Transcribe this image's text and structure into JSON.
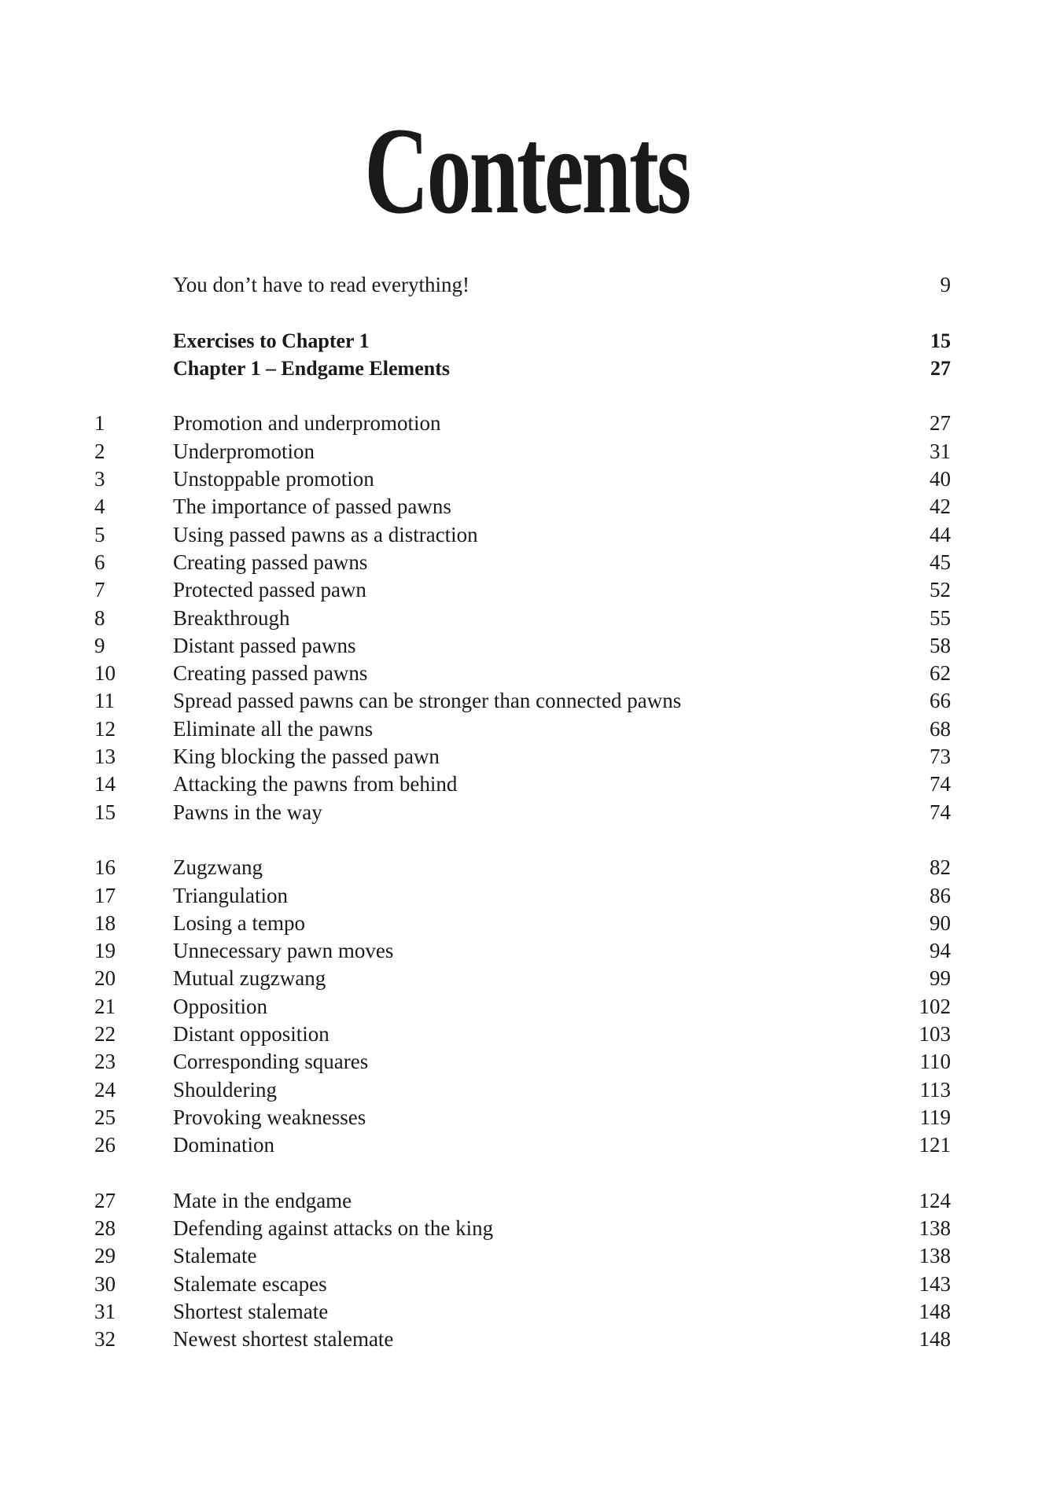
{
  "title": "Contents",
  "intro": [
    {
      "title": "You don’t have to read everything!",
      "page": "9"
    }
  ],
  "headings": [
    {
      "title": "Exercises to Chapter 1",
      "page": "15"
    },
    {
      "title": "Chapter 1 – Endgame Elements",
      "page": "27"
    }
  ],
  "groups": [
    [
      {
        "num": "1",
        "title": "Promotion and underpromotion",
        "page": "27"
      },
      {
        "num": "2",
        "title": "Underpromotion",
        "page": "31"
      },
      {
        "num": "3",
        "title": "Unstoppable promotion",
        "page": "40"
      },
      {
        "num": "4",
        "title": "The importance of passed pawns",
        "page": "42"
      },
      {
        "num": "5",
        "title": "Using passed pawns as a distraction",
        "page": "44"
      },
      {
        "num": "6",
        "title": "Creating passed pawns",
        "page": "45"
      },
      {
        "num": "7",
        "title": "Protected passed pawn",
        "page": "52"
      },
      {
        "num": "8",
        "title": "Breakthrough",
        "page": "55"
      },
      {
        "num": "9",
        "title": "Distant passed pawns",
        "page": "58"
      },
      {
        "num": "10",
        "title": "Creating passed pawns",
        "page": "62"
      },
      {
        "num": "11",
        "title": "Spread passed pawns can be stronger than connected pawns",
        "page": "66"
      },
      {
        "num": "12",
        "title": "Eliminate all the pawns",
        "page": "68"
      },
      {
        "num": "13",
        "title": "King blocking the passed pawn",
        "page": "73"
      },
      {
        "num": "14",
        "title": "Attacking the pawns from behind",
        "page": "74"
      },
      {
        "num": "15",
        "title": "Pawns in the way",
        "page": "74"
      }
    ],
    [
      {
        "num": "16",
        "title": "Zugzwang",
        "page": "82"
      },
      {
        "num": "17",
        "title": "Triangulation",
        "page": "86"
      },
      {
        "num": "18",
        "title": "Losing a tempo",
        "page": "90"
      },
      {
        "num": "19",
        "title": "Unnecessary pawn moves",
        "page": "94"
      },
      {
        "num": "20",
        "title": "Mutual zugzwang",
        "page": "99"
      },
      {
        "num": "21",
        "title": "Opposition",
        "page": "102"
      },
      {
        "num": "22",
        "title": "Distant opposition",
        "page": "103"
      },
      {
        "num": "23",
        "title": "Corresponding squares",
        "page": "110"
      },
      {
        "num": "24",
        "title": "Shouldering",
        "page": "113"
      },
      {
        "num": "25",
        "title": "Provoking weaknesses",
        "page": "119"
      },
      {
        "num": "26",
        "title": "Domination",
        "page": "121"
      }
    ],
    [
      {
        "num": "27",
        "title": "Mate in the endgame",
        "page": "124"
      },
      {
        "num": "28",
        "title": "Defending against attacks on the king",
        "page": "138"
      },
      {
        "num": "29",
        "title": "Stalemate",
        "page": "138"
      },
      {
        "num": "30",
        "title": "Stalemate escapes",
        "page": "143"
      },
      {
        "num": "31",
        "title": "Shortest stalemate",
        "page": "148"
      },
      {
        "num": "32",
        "title": "Newest shortest stalemate",
        "page": "148"
      }
    ]
  ]
}
